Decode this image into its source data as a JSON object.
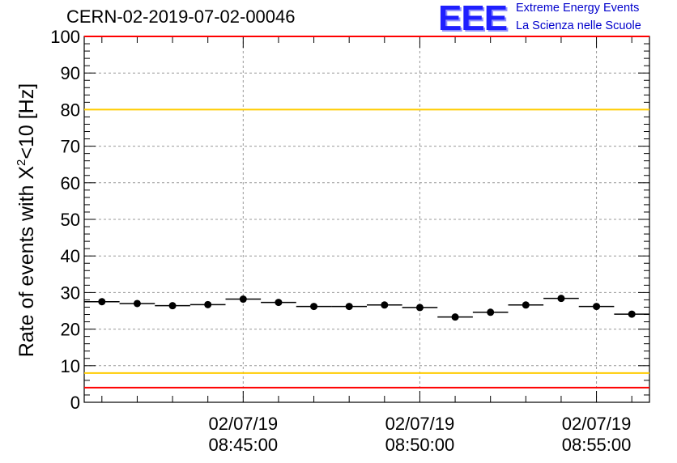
{
  "header": {
    "title": "CERN-02-2019-07-02-00046",
    "logo_mark": "EEE",
    "logo_line1": "Extreme Energy Events",
    "logo_line2": "La Scienza nelle Scuole"
  },
  "chart_data": {
    "type": "scatter",
    "title": "CERN-02-2019-07-02-00046",
    "ylabel_prefix": "Rate of events with X",
    "ylabel_sup": "2",
    "ylabel_suffix": "<10 [Hz]",
    "xlabel": "",
    "ylim": [
      0,
      100
    ],
    "xlim": [
      "08:40:30",
      "08:56:30"
    ],
    "grid": true,
    "y_ticks": [
      0,
      10,
      20,
      30,
      40,
      50,
      60,
      70,
      80,
      90,
      100
    ],
    "x_ticks": [
      {
        "time": "08:45:00",
        "date": "02/07/19",
        "clock": "08:45:00"
      },
      {
        "time": "08:50:00",
        "date": "02/07/19",
        "clock": "08:50:00"
      },
      {
        "time": "08:55:00",
        "date": "02/07/19",
        "clock": "08:55:00"
      }
    ],
    "reference_lines": [
      {
        "y": 100,
        "color": "#ff0000"
      },
      {
        "y": 80,
        "color": "#ffcc00"
      },
      {
        "y": 8,
        "color": "#ffcc00"
      },
      {
        "y": 4,
        "color": "#ff0000"
      }
    ],
    "series": [
      {
        "marker_color": "#000000",
        "points": [
          {
            "x": "08:41:00",
            "y": 27.5
          },
          {
            "x": "08:42:00",
            "y": 27.0
          },
          {
            "x": "08:43:00",
            "y": 26.4
          },
          {
            "x": "08:44:00",
            "y": 26.7
          },
          {
            "x": "08:45:00",
            "y": 28.2
          },
          {
            "x": "08:46:00",
            "y": 27.3
          },
          {
            "x": "08:47:00",
            "y": 26.2
          },
          {
            "x": "08:48:00",
            "y": 26.2
          },
          {
            "x": "08:49:00",
            "y": 26.6
          },
          {
            "x": "08:50:00",
            "y": 25.9
          },
          {
            "x": "08:51:00",
            "y": 23.3
          },
          {
            "x": "08:52:00",
            "y": 24.6
          },
          {
            "x": "08:53:00",
            "y": 26.6
          },
          {
            "x": "08:54:00",
            "y": 28.4
          },
          {
            "x": "08:55:00",
            "y": 26.2
          },
          {
            "x": "08:56:00",
            "y": 24.1
          }
        ]
      }
    ]
  }
}
